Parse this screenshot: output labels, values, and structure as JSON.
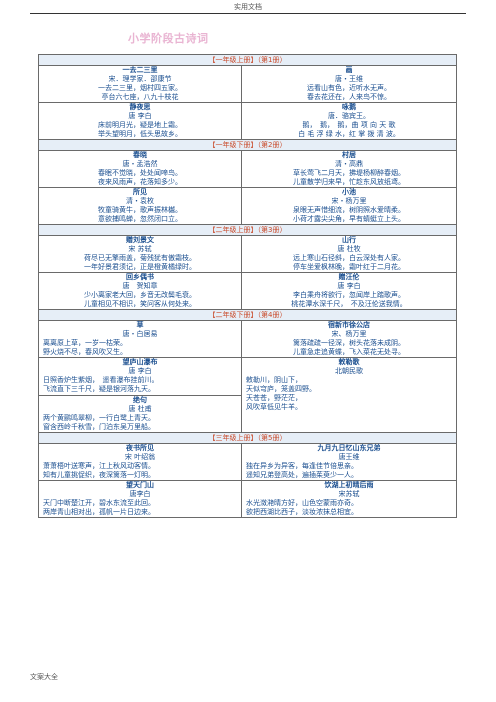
{
  "header": "实用文档",
  "footer": "文案大全",
  "doc_title": "小学阶段古诗词",
  "sections": [
    {
      "label": "【一年级上册】（第1册）",
      "rows": [
        [
          {
            "title": "一去二三里",
            "author": "宋．理学家．邵康节",
            "lines": [
              "一去二三里，烟村四五家。",
              "亭台六七座，八九十枝花"
            ],
            "align": "c"
          },
          {
            "title": "画",
            "author": "唐・王维",
            "lines": [
              "远看山有色，近听水无声。",
              "春去花还在，人来鸟不惊。"
            ],
            "align": "c"
          }
        ],
        [
          {
            "title": "静夜思",
            "author": "唐 李白",
            "lines": [
              "床前明月光，疑是地上霜。",
              "举头望明月，低头思故乡。"
            ],
            "align": "c"
          },
          {
            "title": "咏鹅",
            "author": "唐．骆宾王。",
            "lines": [
              "鹅，　鹅，　鹅，曲 项 向 天 歌",
              "白 毛 浮 绿 水，红 掌 拨 清 波。"
            ],
            "align": "c"
          }
        ]
      ]
    },
    {
      "label": "【一年级下册】（第2册）",
      "rows": [
        [
          {
            "title": "春晓",
            "author": "唐・孟浩然",
            "lines": [
              "春眠不觉晓，处处闻啼鸟。",
              "夜来风雨声，花落知多少。"
            ],
            "align": "c"
          },
          {
            "title": "村居",
            "author": "清・高鼎",
            "lines": [
              "草长莺飞二月天，拂堤杨柳醉春烟。",
              "儿童散学归来早，忙趁东风放纸鸢。"
            ],
            "align": "c"
          }
        ],
        [
          {
            "title": "所见",
            "author": "清・袁枚",
            "lines": [
              "牧童骑黄牛，歌声振林樾。",
              "意欲捕鸣蝉，忽然闭口立。"
            ],
            "align": "c"
          },
          {
            "title": "小池",
            "author": "宋・杨万里",
            "lines": [
              "泉眼无声惜细流，树阴照水爱晴柔。",
              "小荷才露尖尖角，早有蜻蜓立上头。"
            ],
            "align": "c"
          }
        ]
      ]
    },
    {
      "label": "【二年级上册】（第3册）",
      "rows": [
        [
          {
            "title": "赠刘景文",
            "author": "宋 苏轼",
            "lines": [
              "荷尽已无擎雨盖，菊残犹有傲霜枝。",
              "一年好景君须记，正是橙黄橘绿时。"
            ],
            "align": "c"
          },
          {
            "title": "山行",
            "author": "唐 杜牧",
            "lines": [
              "远上寒山石径斜，白云深处有人家。",
              "停车坐爱枫林晚，霜叶红于二月花。"
            ],
            "align": "c"
          }
        ],
        [
          {
            "title": "回乡偶书",
            "author": "唐　贺知章",
            "lines": [
              "少小离家老大回，乡音无改鬓毛衰。",
              "儿童相见不相识，笑问客从何处来。"
            ],
            "align": "c"
          },
          {
            "title": "赠汪伦",
            "author": "唐 李白",
            "lines": [
              "李白乘舟将欲行，忽闻岸上踏歌声。",
              "桃花潭水深千尺，　不及汪伦送我情。"
            ],
            "align": "c"
          }
        ]
      ]
    },
    {
      "label": "【二年级下册】（第4册）",
      "rows": [
        [
          {
            "title": "草",
            "author": "唐・白居易",
            "lines": [
              "离离原上草，一岁一枯荣。",
              "野火烧不尽，春风吹又生。"
            ],
            "align": "l"
          },
          {
            "title": "宿新市徐公店",
            "author": "宋、杨万里",
            "lines": [
              "篱落疏疏一径深，树头花落未成阴。",
              "儿童急走追黄蝶，飞入菜花无处寻。"
            ],
            "align": "c"
          }
        ],
        [
          {
            "title": "望庐山瀑布",
            "author": "唐 李白",
            "lines": [
              "日照香炉生紫烟，　遥看瀑布挂前川。",
              "飞流直下三千尺，疑是银河落九天。"
            ],
            "align": "l",
            "extra": {
              "title": "绝句",
              "author": "唐 杜甫",
              "lines": [
                "两个黄鹂鸣翠柳，一行白鹭上青天。",
                "窗含西岭千秋雪，门泊东吴万里船。"
              ]
            }
          },
          {
            "title": "敕勒歌",
            "author": "北朝民歌",
            "lines": [
              "敕勒川，阴山下，",
              "天似穹庐，笼盖四野。",
              "天苍苍，野茫茫，",
              "风吹草低见牛羊。"
            ],
            "align": "l"
          }
        ]
      ]
    },
    {
      "label": "【三年级上册】（第5册）",
      "rows": [
        [
          {
            "title": "夜书所见",
            "author": "宋 叶绍翁",
            "lines": [
              "萧萧梧叶送寒声，江上秋风动客情。",
              "知有儿童挑促织，夜深篱落一灯明。"
            ],
            "align": "l"
          },
          {
            "title": "九月九日忆山东兄弟",
            "author": "唐王维",
            "lines": [
              "独在异乡为异客，每逢佳节倍思亲。",
              "遥知兄弟登高处，遍插茱萸少一人。"
            ],
            "align": "l"
          }
        ],
        [
          {
            "title": "望天门山",
            "author": "唐李白",
            "lines": [
              "天门中断楚江开，碧水东流至此回。",
              "两岸青山相对出，孤帆一片日边来。"
            ],
            "align": "l"
          },
          {
            "title": "饮湖上初晴后雨",
            "author": "宋苏轼",
            "lines": [
              "水光潋滟晴方好，山色空蒙雨亦奇。",
              "欲把西湖比西子，淡妆浓抹总相宜。"
            ],
            "align": "l"
          }
        ]
      ]
    }
  ]
}
